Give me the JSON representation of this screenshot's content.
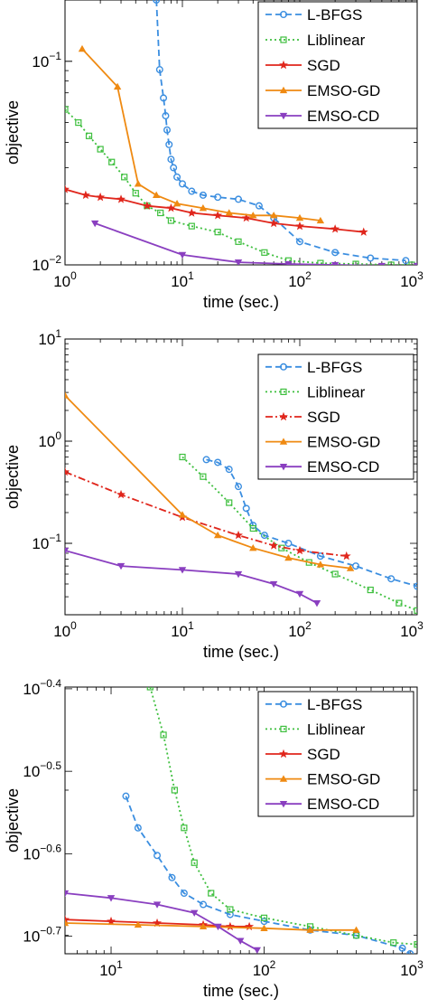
{
  "legend_labels": [
    "L-BFGS",
    "Liblinear",
    "SGD",
    "EMSO-GD",
    "EMSO-CD"
  ],
  "chart_data": [
    {
      "type": "line",
      "xscale": "log",
      "yscale": "log",
      "xlabel": "time (sec.)",
      "ylabel": "objective",
      "xlim": [
        1,
        1000
      ],
      "ylim": [
        0.01,
        0.2
      ],
      "xticks": [
        {
          "v": 1,
          "b": "10",
          "e": "0"
        },
        {
          "v": 10,
          "b": "10",
          "e": "1"
        },
        {
          "v": 100,
          "b": "10",
          "e": "2"
        },
        {
          "v": 1000,
          "b": "10",
          "e": "3"
        }
      ],
      "yticks": [
        {
          "v": 0.01,
          "b": "10",
          "e": "−2"
        },
        {
          "v": 0.1,
          "b": "10",
          "e": "−1"
        }
      ],
      "legend": "top-right",
      "series": [
        {
          "name": "L-BFGS",
          "color": "#3b8ee0",
          "dash": "7,4",
          "marker": "circle",
          "points": [
            [
              6.0,
              0.2
            ],
            [
              6.4,
              0.091
            ],
            [
              6.9,
              0.066
            ],
            [
              7.2,
              0.054
            ],
            [
              7.4,
              0.046
            ],
            [
              7.7,
              0.039
            ],
            [
              8.0,
              0.033
            ],
            [
              8.4,
              0.03
            ],
            [
              9.0,
              0.027
            ],
            [
              10,
              0.025
            ],
            [
              12,
              0.023
            ],
            [
              15,
              0.022
            ],
            [
              20,
              0.0215
            ],
            [
              30,
              0.021
            ],
            [
              45,
              0.0195
            ],
            [
              60,
              0.017
            ],
            [
              100,
              0.013
            ],
            [
              200,
              0.0115
            ],
            [
              400,
              0.0108
            ],
            [
              800,
              0.0105
            ]
          ]
        },
        {
          "name": "Liblinear",
          "color": "#3ebf3e",
          "dash": "2,3",
          "marker": "square",
          "points": [
            [
              1.0,
              0.058
            ],
            [
              1.3,
              0.05
            ],
            [
              1.6,
              0.043
            ],
            [
              2.0,
              0.037
            ],
            [
              2.5,
              0.032
            ],
            [
              3.2,
              0.027
            ],
            [
              4,
              0.0225
            ],
            [
              5,
              0.0195
            ],
            [
              6.5,
              0.018
            ],
            [
              8,
              0.0165
            ],
            [
              12,
              0.0155
            ],
            [
              20,
              0.0145
            ],
            [
              30,
              0.013
            ],
            [
              50,
              0.0115
            ],
            [
              80,
              0.0105
            ],
            [
              150,
              0.0102
            ],
            [
              300,
              0.0101
            ],
            [
              600,
              0.01
            ],
            [
              900,
              0.01
            ]
          ]
        },
        {
          "name": "SGD",
          "color": "#e0261c",
          "dash": "",
          "marker": "star",
          "points": [
            [
              1.0,
              0.0235
            ],
            [
              1.5,
              0.022
            ],
            [
              2,
              0.0215
            ],
            [
              3,
              0.021
            ],
            [
              5,
              0.0195
            ],
            [
              8,
              0.019
            ],
            [
              12,
              0.018
            ],
            [
              20,
              0.0175
            ],
            [
              35,
              0.017
            ],
            [
              60,
              0.016
            ],
            [
              100,
              0.0155
            ],
            [
              200,
              0.015
            ],
            [
              350,
              0.0145
            ]
          ]
        },
        {
          "name": "EMSO-GD",
          "color": "#ef8a12",
          "dash": "",
          "marker": "triangle-up",
          "points": [
            [
              1.4,
              0.115
            ],
            [
              2.8,
              0.075
            ],
            [
              4.2,
              0.025
            ],
            [
              6,
              0.022
            ],
            [
              9,
              0.02
            ],
            [
              15,
              0.019
            ],
            [
              25,
              0.018
            ],
            [
              40,
              0.0175
            ],
            [
              60,
              0.0175
            ],
            [
              100,
              0.017
            ],
            [
              150,
              0.0165
            ]
          ]
        },
        {
          "name": "EMSO-CD",
          "color": "#8a3fc0",
          "dash": "",
          "marker": "triangle-down",
          "points": [
            [
              1.8,
              0.016
            ],
            [
              10,
              0.0112
            ],
            [
              30,
              0.0103
            ],
            [
              80,
              0.0101
            ],
            [
              200,
              0.01
            ],
            [
              500,
              0.0099
            ],
            [
              1000,
              0.0099
            ]
          ]
        }
      ]
    },
    {
      "type": "line",
      "xscale": "log",
      "yscale": "log",
      "xlabel": "time (sec.)",
      "ylabel": "objective",
      "xlim": [
        1,
        1000
      ],
      "ylim": [
        0.02,
        10
      ],
      "xticks": [
        {
          "v": 1,
          "b": "10",
          "e": "0"
        },
        {
          "v": 10,
          "b": "10",
          "e": "1"
        },
        {
          "v": 100,
          "b": "10",
          "e": "2"
        },
        {
          "v": 1000,
          "b": "10",
          "e": "3"
        }
      ],
      "yticks": [
        {
          "v": 0.1,
          "b": "10",
          "e": "−1"
        },
        {
          "v": 1,
          "b": "10",
          "e": "0"
        },
        {
          "v": 10,
          "b": "10",
          "e": "1"
        }
      ],
      "legend": "top-right",
      "series": [
        {
          "name": "L-BFGS",
          "color": "#3b8ee0",
          "dash": "7,4",
          "marker": "circle",
          "points": [
            [
              16,
              0.66
            ],
            [
              20,
              0.62
            ],
            [
              25,
              0.53
            ],
            [
              30,
              0.36
            ],
            [
              35,
              0.22
            ],
            [
              40,
              0.15
            ],
            [
              50,
              0.12
            ],
            [
              80,
              0.1
            ],
            [
              150,
              0.075
            ],
            [
              300,
              0.06
            ],
            [
              600,
              0.045
            ],
            [
              1000,
              0.038
            ]
          ]
        },
        {
          "name": "Liblinear",
          "color": "#3ebf3e",
          "dash": "2,3",
          "marker": "square",
          "points": [
            [
              10,
              0.7
            ],
            [
              15,
              0.45
            ],
            [
              25,
              0.25
            ],
            [
              40,
              0.14
            ],
            [
              70,
              0.09
            ],
            [
              120,
              0.065
            ],
            [
              200,
              0.05
            ],
            [
              400,
              0.035
            ],
            [
              700,
              0.026
            ],
            [
              1000,
              0.022
            ]
          ]
        },
        {
          "name": "SGD",
          "color": "#e0261c",
          "dash": "8,3,2,3",
          "marker": "star",
          "points": [
            [
              1,
              0.5
            ],
            [
              3,
              0.3
            ],
            [
              10,
              0.18
            ],
            [
              30,
              0.12
            ],
            [
              60,
              0.095
            ],
            [
              100,
              0.085
            ],
            [
              250,
              0.075
            ]
          ]
        },
        {
          "name": "EMSO-GD",
          "color": "#ef8a12",
          "dash": "",
          "marker": "triangle-up",
          "points": [
            [
              1,
              2.8
            ],
            [
              10,
              0.19
            ],
            [
              20,
              0.12
            ],
            [
              40,
              0.09
            ],
            [
              80,
              0.072
            ],
            [
              150,
              0.062
            ],
            [
              270,
              0.057
            ]
          ]
        },
        {
          "name": "EMSO-CD",
          "color": "#8a3fc0",
          "dash": "",
          "marker": "triangle-down",
          "points": [
            [
              1,
              0.085
            ],
            [
              3,
              0.06
            ],
            [
              10,
              0.055
            ],
            [
              30,
              0.05
            ],
            [
              60,
              0.04
            ],
            [
              100,
              0.032
            ],
            [
              140,
              0.026
            ]
          ]
        }
      ]
    },
    {
      "type": "line",
      "xscale": "log",
      "yscale": "log",
      "xlabel": "time (sec.)",
      "ylabel": "objective",
      "xlim": [
        5,
        1000
      ],
      "ylim": [
        0.19,
        0.4
      ],
      "xticks": [
        {
          "v": 10,
          "b": "10",
          "e": "1"
        },
        {
          "v": 100,
          "b": "10",
          "e": "2"
        },
        {
          "v": 1000,
          "b": "10",
          "e": "3"
        }
      ],
      "yticks": [
        {
          "v": 0.1995,
          "b": "10",
          "e": "−0.7"
        },
        {
          "v": 0.2512,
          "b": "10",
          "e": "−0.6"
        },
        {
          "v": 0.3162,
          "b": "10",
          "e": "−0.5"
        },
        {
          "v": 0.3981,
          "b": "10",
          "e": "−0.4"
        }
      ],
      "legend": "top-right",
      "series": [
        {
          "name": "L-BFGS",
          "color": "#3b8ee0",
          "dash": "7,4",
          "marker": "circle",
          "points": [
            [
              12.5,
              0.295
            ],
            [
              15,
              0.27
            ],
            [
              20,
              0.25
            ],
            [
              25,
              0.235
            ],
            [
              30,
              0.225
            ],
            [
              40,
              0.218
            ],
            [
              60,
              0.212
            ],
            [
              100,
              0.208
            ],
            [
              200,
              0.203
            ],
            [
              400,
              0.2
            ],
            [
              800,
              0.193
            ],
            [
              900,
              0.19
            ]
          ]
        },
        {
          "name": "Liblinear",
          "color": "#3ebf3e",
          "dash": "2,3",
          "marker": "square",
          "points": [
            [
              18,
              0.4
            ],
            [
              22,
              0.35
            ],
            [
              26,
              0.3
            ],
            [
              30,
              0.27
            ],
            [
              35,
              0.245
            ],
            [
              45,
              0.225
            ],
            [
              60,
              0.215
            ],
            [
              100,
              0.21
            ],
            [
              200,
              0.205
            ],
            [
              400,
              0.2
            ],
            [
              700,
              0.196
            ],
            [
              1000,
              0.195
            ]
          ]
        },
        {
          "name": "SGD",
          "color": "#e0261c",
          "dash": "",
          "marker": "star",
          "points": [
            [
              5,
              0.209
            ],
            [
              10,
              0.208
            ],
            [
              20,
              0.207
            ],
            [
              40,
              0.206
            ],
            [
              60,
              0.205
            ],
            [
              80,
              0.205
            ]
          ]
        },
        {
          "name": "EMSO-GD",
          "color": "#ef8a12",
          "dash": "",
          "marker": "triangle-up",
          "points": [
            [
              5,
              0.207
            ],
            [
              15,
              0.206
            ],
            [
              40,
              0.205
            ],
            [
              100,
              0.204
            ],
            [
              200,
              0.203
            ],
            [
              400,
              0.203
            ]
          ]
        },
        {
          "name": "EMSO-CD",
          "color": "#8a3fc0",
          "dash": "",
          "marker": "triangle-down",
          "points": [
            [
              5,
              0.225
            ],
            [
              10,
              0.222
            ],
            [
              20,
              0.218
            ],
            [
              35,
              0.213
            ],
            [
              50,
              0.205
            ],
            [
              70,
              0.197
            ],
            [
              90,
              0.192
            ]
          ]
        }
      ]
    }
  ]
}
